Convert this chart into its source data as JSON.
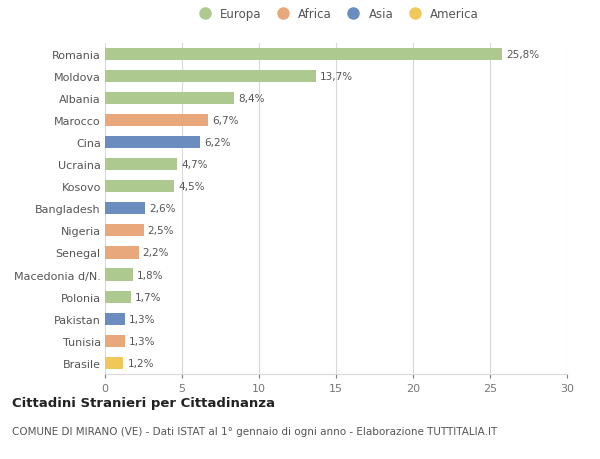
{
  "categories": [
    "Romania",
    "Moldova",
    "Albania",
    "Marocco",
    "Cina",
    "Ucraina",
    "Kosovo",
    "Bangladesh",
    "Nigeria",
    "Senegal",
    "Macedonia d/N.",
    "Polonia",
    "Pakistan",
    "Tunisia",
    "Brasile"
  ],
  "values": [
    25.8,
    13.7,
    8.4,
    6.7,
    6.2,
    4.7,
    4.5,
    2.6,
    2.5,
    2.2,
    1.8,
    1.7,
    1.3,
    1.3,
    1.2
  ],
  "labels": [
    "25,8%",
    "13,7%",
    "8,4%",
    "6,7%",
    "6,2%",
    "4,7%",
    "4,5%",
    "2,6%",
    "2,5%",
    "2,2%",
    "1,8%",
    "1,7%",
    "1,3%",
    "1,3%",
    "1,2%"
  ],
  "colors": [
    "#aec990",
    "#aec990",
    "#aec990",
    "#e8a87c",
    "#6b8cbf",
    "#aec990",
    "#aec990",
    "#6b8cbf",
    "#e8a87c",
    "#e8a87c",
    "#aec990",
    "#aec990",
    "#6b8cbf",
    "#e8a87c",
    "#f0c85a"
  ],
  "legend_labels": [
    "Europa",
    "Africa",
    "Asia",
    "America"
  ],
  "legend_colors": [
    "#aec990",
    "#e8a87c",
    "#6b8cbf",
    "#f0c85a"
  ],
  "xlim": [
    0,
    30
  ],
  "xticks": [
    0,
    5,
    10,
    15,
    20,
    25,
    30
  ],
  "title": "Cittadini Stranieri per Cittadinanza",
  "subtitle": "COMUNE DI MIRANO (VE) - Dati ISTAT al 1° gennaio di ogni anno - Elaborazione TUTTITALIA.IT",
  "background_color": "#ffffff",
  "grid_color": "#d8d8d8",
  "bar_height": 0.55,
  "label_fontsize": 7.5,
  "tick_fontsize": 8,
  "title_fontsize": 9.5,
  "subtitle_fontsize": 7.5
}
